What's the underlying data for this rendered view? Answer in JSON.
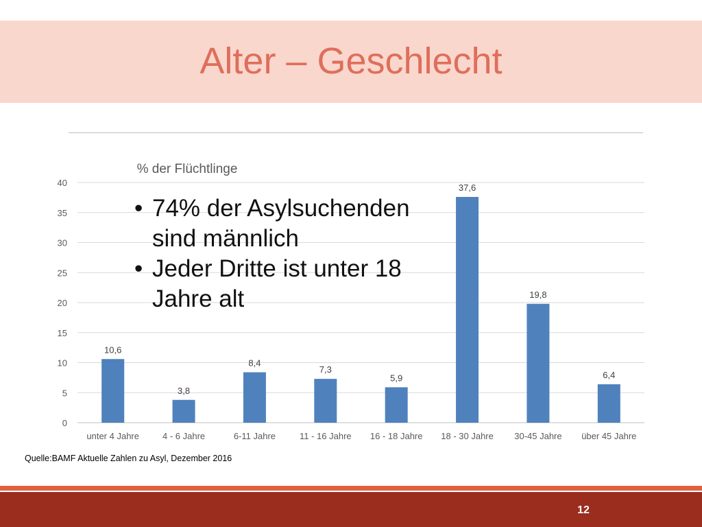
{
  "slide": {
    "title": "Alter – Geschlecht",
    "bullets": [
      "74% der Asylsuchenden sind männlich",
      "Jeder Dritte ist unter 18 Jahre alt"
    ],
    "source": "Quelle:BAMF Aktuelle Zahlen zu Asyl, Dezember 2016",
    "page_number": "12"
  },
  "colors": {
    "title": "#df6e5c",
    "title_band": "#f9d7cc",
    "bar": "#4f81bd",
    "footer": "#9b2d1f",
    "footer_accent": "#e0613f"
  },
  "chart_data": {
    "type": "bar",
    "title": "% der Flüchtlinge",
    "categories": [
      "unter 4 Jahre",
      "4 - 6 Jahre",
      "6-11 Jahre",
      "11 - 16 Jahre",
      "16 - 18 Jahre",
      "18 - 30 Jahre",
      "30-45 Jahre",
      "über 45 Jahre"
    ],
    "values": [
      10.6,
      3.8,
      8.4,
      7.3,
      5.9,
      37.6,
      19.8,
      6.4
    ],
    "value_labels": [
      "10,6",
      "3,8",
      "8,4",
      "7,3",
      "5,9",
      "37,6",
      "19,8",
      "6,4"
    ],
    "yticks": [
      "0",
      "5",
      "10",
      "15",
      "20",
      "25",
      "30",
      "35",
      "40"
    ],
    "ylim": [
      0,
      40
    ],
    "grid": true,
    "legend": "none"
  }
}
